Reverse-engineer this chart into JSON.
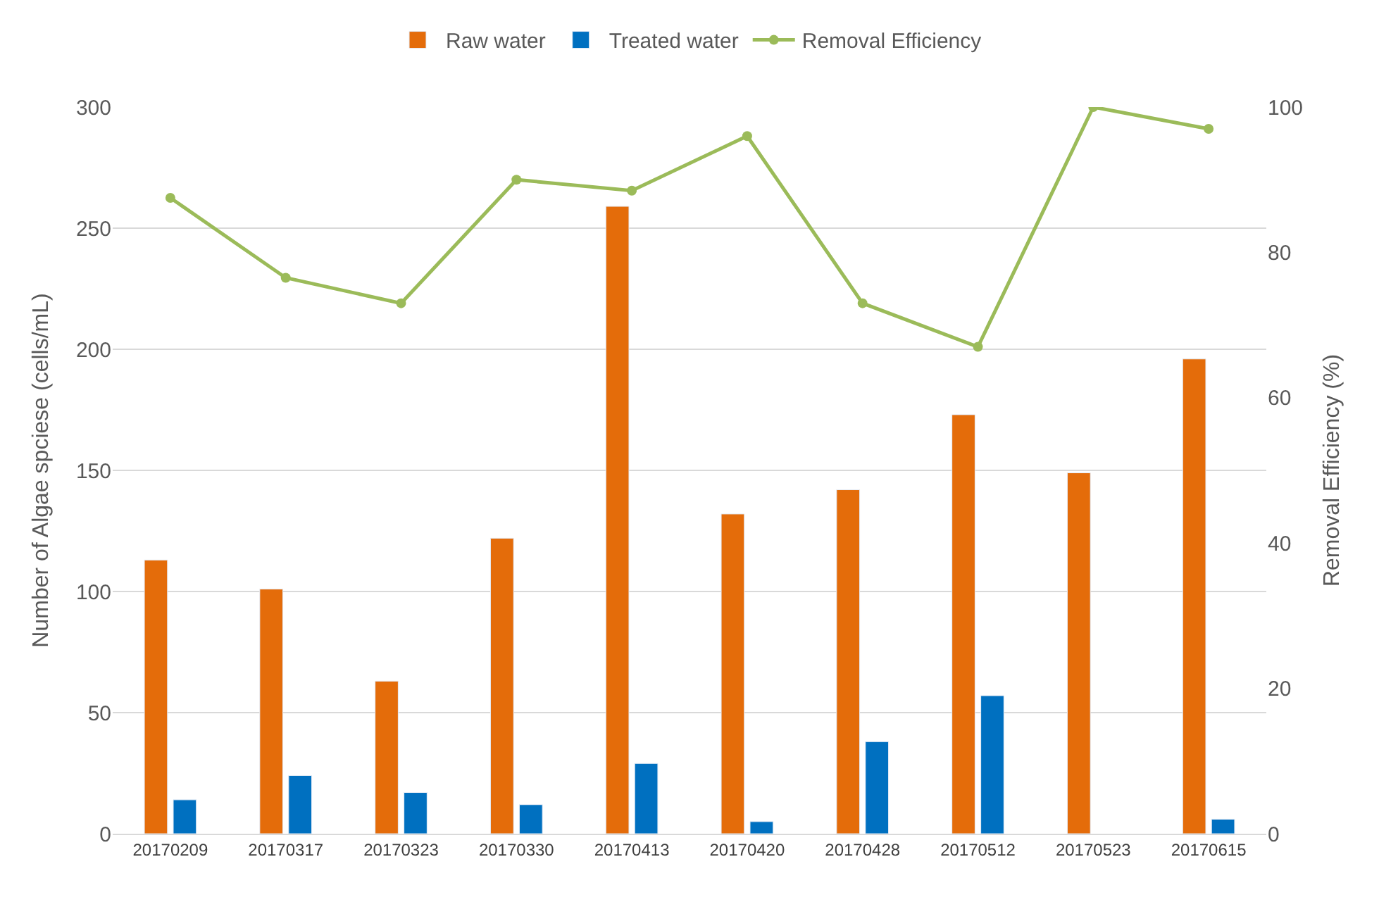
{
  "chart_data": {
    "type": "bar",
    "xlabel": null,
    "ylabel": "Number of Algae spciese (cells/mL)",
    "y2label": "Removal Efficiency (%)",
    "categories": [
      "20170209",
      "20170317",
      "20170323",
      "20170330",
      "20170413",
      "20170420",
      "20170428",
      "20170512",
      "20170523",
      "20170615"
    ],
    "series": [
      {
        "name": "Raw water",
        "color": "#e46c0a",
        "values": [
          113,
          101,
          63,
          122,
          259,
          132,
          142,
          173,
          149,
          196
        ]
      },
      {
        "name": "Treated water",
        "color": "#0070c0",
        "values": [
          14,
          24,
          17,
          12,
          29,
          5,
          38,
          57,
          null,
          6
        ]
      },
      {
        "name": "Removal Efficiency",
        "type": "line",
        "axis": "y2",
        "color": "#9bbb59",
        "marker": "circle",
        "values": [
          87.5,
          76.5,
          73,
          90,
          88.5,
          96,
          73,
          67,
          100,
          97
        ]
      }
    ],
    "ylim": [
      0,
      300
    ],
    "yticks": [
      0,
      50,
      100,
      150,
      200,
      250,
      300
    ],
    "y2lim": [
      0,
      100
    ],
    "y2ticks": [
      0,
      20,
      40,
      60,
      80,
      100
    ],
    "grid": "y",
    "legend": "top"
  }
}
